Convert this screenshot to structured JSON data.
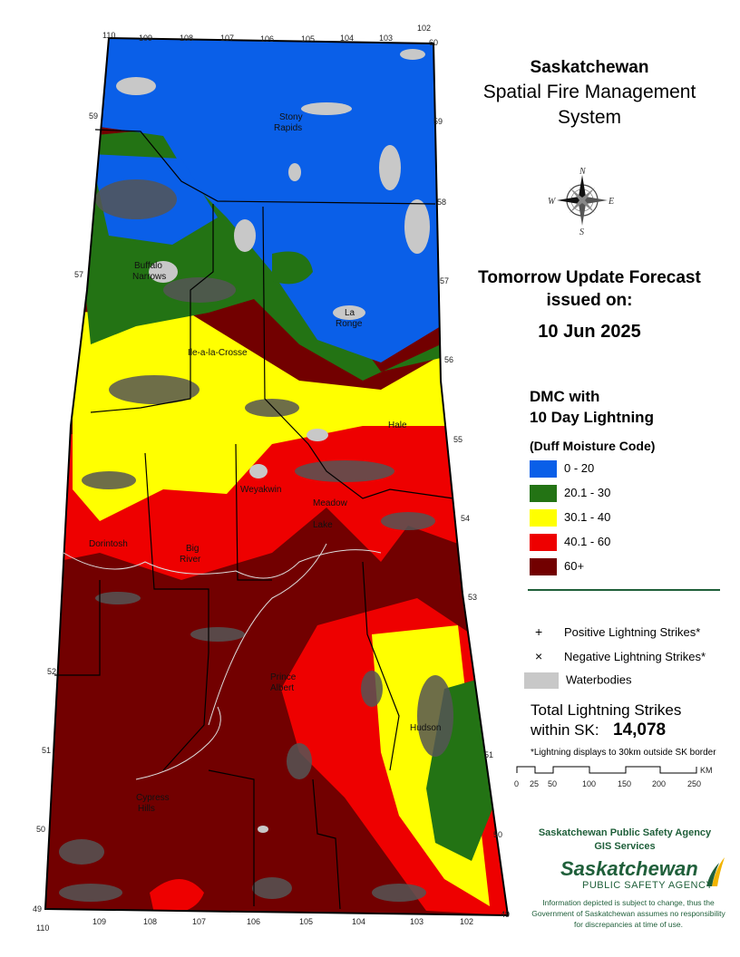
{
  "title": {
    "line1": "Saskatchewan",
    "line2": "Spatial Fire Management",
    "line3": "System"
  },
  "forecast": {
    "line1": "Tomorrow Update Forecast",
    "line2": "issued on:",
    "date": "10 Jun 2025"
  },
  "legend": {
    "title_line1": "DMC with",
    "title_line2": "10 Day Lightning",
    "subtitle": "(Duff Moisture Code)",
    "classes": [
      {
        "label": "0 - 20",
        "color": "#0a5fe8"
      },
      {
        "label": "20.1 - 30",
        "color": "#237314"
      },
      {
        "label": "30.1 - 40",
        "color": "#ffff00"
      },
      {
        "label": "40.1 - 60",
        "color": "#ee0000"
      },
      {
        "label": "60+",
        "color": "#720000"
      }
    ],
    "positive_symbol": "+",
    "positive_label": "Positive Lightning Strikes*",
    "negative_symbol": "×",
    "negative_label": "Negative Lightning Strikes*",
    "water_label": "Waterbodies",
    "water_color": "#c8c8c8"
  },
  "lightning": {
    "total_line1": "Total Lightning Strikes",
    "total_line2": "within SK:",
    "total_value": "14,078",
    "note": "*Lightning displays to 30km outside SK border"
  },
  "scale": {
    "ticks": [
      "0",
      "25",
      "50",
      "100",
      "150",
      "200",
      "250"
    ],
    "unit": "KM"
  },
  "agency": {
    "line1": "Saskatchewan Public Safety Agency",
    "line2": "GIS  Services",
    "logo_word1": "Saskatchewan",
    "logo_word2": "PUBLIC SAFETY AGENCY",
    "disclaimer": "Information depicted is subject to change, thus the Government of Saskatchewan assumes no responsibility for discrepancies at time of use."
  },
  "compass": {
    "n": "N",
    "e": "E",
    "s": "S",
    "w": "W"
  },
  "map": {
    "places": [
      {
        "name": "Stony Rapids",
        "lines": [
          "Stony",
          "Rapids"
        ]
      },
      {
        "name": "Buffalo Narrows",
        "lines": [
          "Buffalo",
          "Narrows"
        ]
      },
      {
        "name": "La Ronge",
        "lines": [
          "La",
          "Ronge"
        ]
      },
      {
        "name": "Ile-a-la-Crosse",
        "lines": [
          "Ile-a-la-Crosse"
        ]
      },
      {
        "name": "Meadow Lake",
        "lines": [
          "Meadow",
          "Lake"
        ]
      },
      {
        "name": "Hudson Bay",
        "lines": [
          "Hudson"
        ]
      },
      {
        "name": "Prince Albert",
        "lines": [
          "Prince",
          "Albert"
        ]
      },
      {
        "name": "Big River",
        "lines": [
          "Big",
          "River"
        ]
      },
      {
        "name": "Dorintosh",
        "lines": [
          "Dorintosh"
        ]
      },
      {
        "name": "Weyakwin",
        "lines": [
          "Weyakwin"
        ]
      },
      {
        "name": "Cypress Hills",
        "lines": [
          "Cypress",
          "Hills"
        ]
      },
      {
        "name": "Hale",
        "lines": [
          "Hale"
        ]
      }
    ],
    "lon_top": [
      "110",
      "109",
      "108",
      "107",
      "106",
      "105",
      "104",
      "103",
      "102"
    ],
    "lon_bottom": [
      "110",
      "109",
      "108",
      "107",
      "106",
      "105",
      "104",
      "103",
      "102"
    ],
    "lat_left": [
      "59",
      "57",
      "52",
      "51",
      "50",
      "49"
    ],
    "lat_right": [
      "60",
      "59",
      "58",
      "57",
      "56",
      "55",
      "54",
      "53",
      "51",
      "50",
      "49"
    ]
  }
}
